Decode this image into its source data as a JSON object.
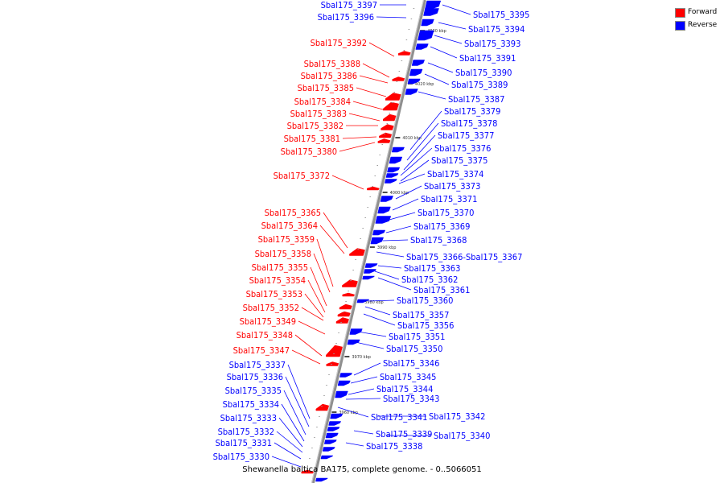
{
  "legend": {
    "forward_label": "Forward",
    "reverse_label": "Reverse",
    "forward_color": "#ff0000",
    "reverse_color": "#0000ff"
  },
  "caption": "Shewanella baltica BA175, complete genome. - 0..5066051",
  "scale_ticks": [
    "4030 kbp",
    "4020 kbp",
    "4010 kbp",
    "4000 kbp",
    "3990 kbp",
    "3980 kbp",
    "3970 kbp",
    "3960 kbp"
  ],
  "forward_labels": [
    "Sbal175_3392",
    "Sbal175_3388",
    "Sbal175_3386",
    "Sbal175_3385",
    "Sbal175_3384",
    "Sbal175_3383",
    "Sbal175_3382",
    "Sbal175_3381",
    "Sbal175_3380",
    "Sbal175_3372",
    "Sbal175_3365",
    "Sbal175_3364",
    "Sbal175_3359",
    "Sbal175_3358",
    "Sbal175_3355",
    "Sbal175_3354",
    "Sbal175_3353",
    "Sbal175_3352",
    "Sbal175_3349",
    "Sbal175_3348",
    "Sbal175_3347"
  ],
  "reverse_left_labels": [
    "Sbal175_3397",
    "Sbal175_3396",
    "Sbal175_3337",
    "Sbal175_3336",
    "Sbal175_3335",
    "Sbal175_3334",
    "Sbal175_3333",
    "Sbal175_3332",
    "Sbal175_3331",
    "Sbal175_3330"
  ],
  "reverse_right_labels": [
    "Sbal175_3395",
    "Sbal175_3394",
    "Sbal175_3393",
    "Sbal175_3391",
    "Sbal175_3390",
    "Sbal175_3389",
    "Sbal175_3387",
    "Sbal175_3379",
    "Sbal175_3378",
    "Sbal175_3377",
    "Sbal175_3376",
    "Sbal175_3375",
    "Sbal175_3374",
    "Sbal175_3373",
    "Sbal175_3371",
    "Sbal175_3370",
    "Sbal175_3369",
    "Sbal175_3368",
    "Sbal175_3366-Sbal175_3367",
    "Sbal175_3363",
    "Sbal175_3362",
    "Sbal175_3361",
    "Sbal175_3360",
    "Sbal175_3357",
    "Sbal175_3356",
    "Sbal175_3351",
    "Sbal175_3350",
    "Sbal175_3346",
    "Sbal175_3345",
    "Sbal175_3344",
    "Sbal175_3343",
    "Sbal175_3341",
    "Sbal175_3342",
    "Sbal175_3339",
    "Sbal175_3340",
    "Sbal175_3338"
  ]
}
